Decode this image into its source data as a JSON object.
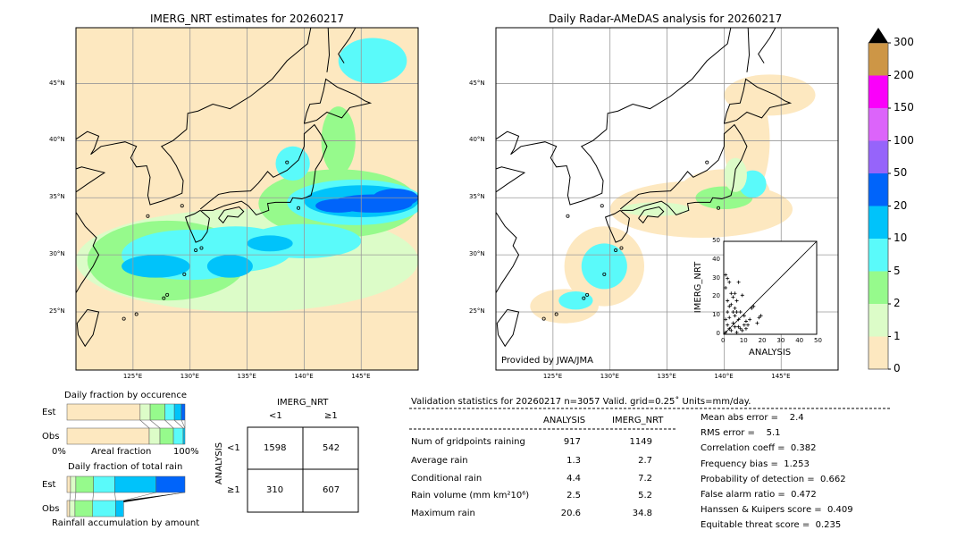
{
  "maps": {
    "left_title": "IMERG_NRT estimates for 20260217",
    "right_title": "Daily Radar-AMeDAS analysis for 20260217",
    "lat_ticks": [
      "45°N",
      "40°N",
      "35°N",
      "30°N",
      "25°N"
    ],
    "lon_ticks": [
      "125°E",
      "130°E",
      "135°E",
      "140°E",
      "145°E"
    ],
    "credit": "Provided by JWA/JMA"
  },
  "colorbar": {
    "labels": [
      "0",
      "1",
      "2",
      "5",
      "10",
      "20",
      "50",
      "100",
      "150",
      "200",
      "300"
    ],
    "colors": [
      "#fde8c0",
      "#dcfcc8",
      "#96fa8c",
      "#5afafa",
      "#00c3fa",
      "#0064fa",
      "#9664fa",
      "#dc64fa",
      "#fa00fa",
      "#cd9646"
    ],
    "extend_color": "#000000"
  },
  "chart_data": [
    {
      "type": "scatter",
      "title": "",
      "xlabel": "ANALYSIS",
      "ylabel": "IMERG_NRT",
      "xlim": [
        0,
        50
      ],
      "ylim": [
        0,
        50
      ],
      "ticks": [
        "0",
        "10",
        "20",
        "30",
        "40",
        "50"
      ],
      "reference_line": "y=x",
      "points": [
        [
          1,
          32
        ],
        [
          2,
          30
        ],
        [
          3,
          28
        ],
        [
          1,
          25
        ],
        [
          4,
          22
        ],
        [
          5,
          20
        ],
        [
          6,
          22
        ],
        [
          7,
          18
        ],
        [
          8,
          28
        ],
        [
          10,
          21
        ],
        [
          2,
          18
        ],
        [
          3,
          15
        ],
        [
          5,
          12
        ],
        [
          6,
          10
        ],
        [
          8,
          8
        ],
        [
          9,
          12
        ],
        [
          11,
          10
        ],
        [
          12,
          7
        ],
        [
          13,
          5
        ],
        [
          15,
          14
        ],
        [
          16,
          15
        ],
        [
          18,
          6
        ],
        [
          19,
          9
        ],
        [
          20,
          10
        ],
        [
          14,
          8
        ],
        [
          1,
          8
        ],
        [
          2,
          5
        ],
        [
          3,
          3
        ],
        [
          4,
          2
        ],
        [
          6,
          4
        ],
        [
          7,
          1
        ],
        [
          9,
          3
        ],
        [
          10,
          2
        ],
        [
          1,
          1
        ],
        [
          2,
          12
        ],
        [
          4,
          16
        ],
        [
          5,
          6
        ],
        [
          3,
          9
        ],
        [
          6,
          14
        ],
        [
          7,
          12
        ],
        [
          8,
          4
        ],
        [
          11,
          5
        ],
        [
          12,
          3
        ]
      ]
    },
    {
      "type": "bar",
      "title": "Daily fraction by occurence",
      "xlabel": "Areal fraction",
      "tick_labels": [
        "0%",
        "100%"
      ],
      "categories": [
        "Est",
        "Obs"
      ],
      "bins": [
        "0-1",
        "1-2",
        "2-5",
        "5-10",
        "10-20",
        "20-50"
      ],
      "series": [
        {
          "name": "Est",
          "values": [
            62,
            8.5,
            12.5,
            8,
            6,
            3
          ]
        },
        {
          "name": "Obs",
          "values": [
            69.7,
            9.1,
            11.4,
            8.3,
            1.5,
            0
          ]
        }
      ]
    },
    {
      "type": "bar",
      "title": "Daily fraction of total rain",
      "xlabel": "Rainfall accumulation by amount",
      "categories": [
        "Est",
        "Obs"
      ],
      "bins": [
        "0-1",
        "1-2",
        "2-5",
        "5-10",
        "10-20",
        "20-50"
      ],
      "series": [
        {
          "name": "Est",
          "values": [
            3,
            4.5,
            15,
            18,
            35,
            24.5
          ]
        },
        {
          "name": "Obs",
          "values": [
            4.7,
            9.4,
            31.3,
            40.6,
            14.0,
            0
          ]
        }
      ],
      "obs_scale": 0.48
    }
  ],
  "contingency": {
    "col_title": "IMERG_NRT",
    "row_title": "ANALYSIS",
    "col_labels": [
      "<1",
      "≥1"
    ],
    "row_labels": [
      "<1",
      "≥1"
    ],
    "cells": [
      [
        "1598",
        "542"
      ],
      [
        "310",
        "607"
      ]
    ]
  },
  "stats": {
    "header": "Validation statistics for 20260217  n=3057 Valid. grid=0.25˚ Units=mm/day.",
    "col_analysis": "ANALYSIS",
    "col_imerg": "IMERG_NRT",
    "rows": [
      {
        "label": "Num of gridpoints raining",
        "analysis": "917",
        "imerg": "1149"
      },
      {
        "label": "Average rain",
        "analysis": "1.3",
        "imerg": "2.7"
      },
      {
        "label": "Conditional rain",
        "analysis": "4.4",
        "imerg": "7.2"
      },
      {
        "label": "Rain volume (mm km²10⁶)",
        "analysis": "2.5",
        "imerg": "5.2"
      },
      {
        "label": "Maximum rain",
        "analysis": "20.6",
        "imerg": "34.8"
      }
    ],
    "scores": [
      "Mean abs error =    2.4",
      "RMS error =    5.1",
      "Correlation coeff =  0.382",
      "Frequency bias =  1.253",
      "Probability of detection =  0.662",
      "False alarm ratio =  0.472",
      "Hanssen & Kuipers score =  0.409",
      "Equitable threat score =  0.235"
    ]
  }
}
